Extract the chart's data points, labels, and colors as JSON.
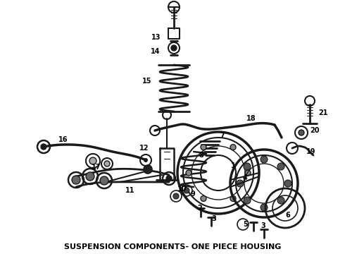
{
  "title": "SUSPENSION COMPONENTS- ONE PIECE HOUSING",
  "title_fontsize": 8.5,
  "bg_color": "#ffffff",
  "line_color": "#1a1a1a",
  "text_color": "#000000",
  "fig_width": 4.9,
  "fig_height": 3.6,
  "dpi": 100
}
